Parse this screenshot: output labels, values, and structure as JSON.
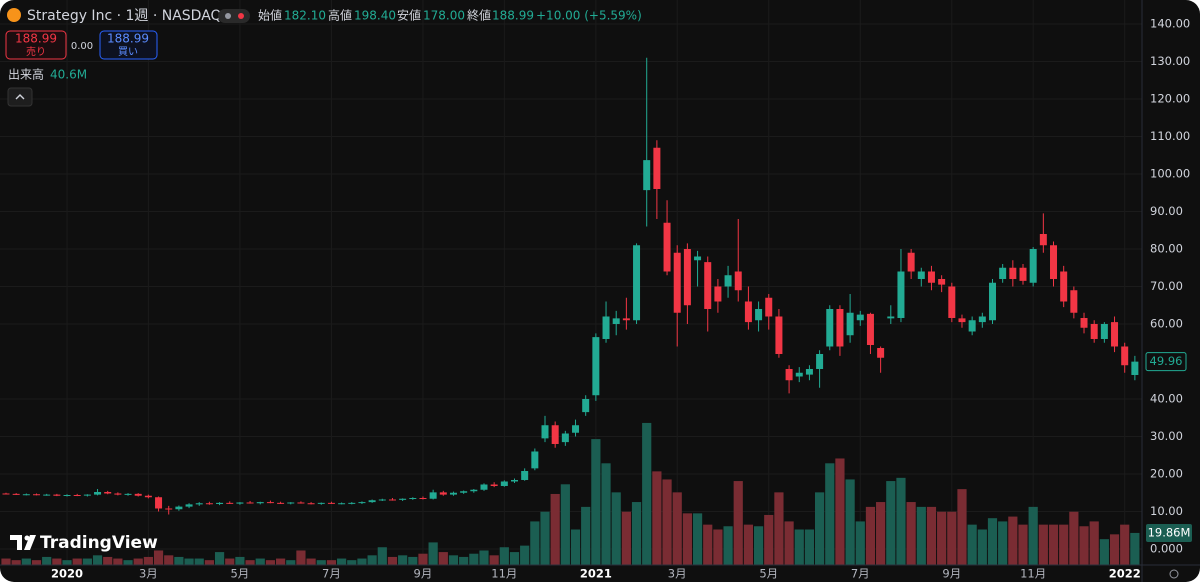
{
  "header": {
    "symbol": "Strategy Inc · 1週 · NASDAQ",
    "ohlc": [
      {
        "label": "始値",
        "value": "182.10"
      },
      {
        "label": "高値",
        "value": "198.40"
      },
      {
        "label": "安値",
        "value": "178.00"
      },
      {
        "label": "終値",
        "value": "188.99"
      }
    ],
    "change": "+10.00 (+5.59%)",
    "sell": {
      "price": "188.99",
      "label": "売り"
    },
    "spread": "0.00",
    "buy": {
      "price": "188.99",
      "label": "買い"
    },
    "volume_title": "出来高",
    "volume_value": "40.6M"
  },
  "watermark": "TradingView",
  "chart_data": {
    "type": "candlestick",
    "categories": [
      null,
      null,
      null,
      null,
      null,
      null,
      "2020",
      null,
      null,
      null,
      null,
      null,
      null,
      null,
      "3月",
      null,
      null,
      null,
      null,
      null,
      null,
      null,
      null,
      "5月",
      null,
      null,
      null,
      null,
      null,
      null,
      null,
      null,
      "7月",
      null,
      null,
      null,
      null,
      null,
      null,
      null,
      null,
      "9月",
      null,
      null,
      null,
      null,
      null,
      null,
      null,
      "11月",
      null,
      null,
      null,
      null,
      null,
      null,
      null,
      null,
      "2021",
      null,
      null,
      null,
      null,
      null,
      null,
      null,
      "3月",
      null,
      null,
      null,
      null,
      null,
      null,
      null,
      null,
      "5月",
      null,
      null,
      null,
      null,
      null,
      null,
      null,
      null,
      "7月",
      null,
      null,
      null,
      null,
      null,
      null,
      null,
      null,
      "9月",
      null,
      null,
      null,
      null,
      null,
      null,
      null,
      "11月",
      null,
      null,
      null,
      null,
      null,
      null,
      null,
      null,
      "2022",
      null
    ],
    "open": [
      14.8,
      14.7,
      14.5,
      14.6,
      14.4,
      14.5,
      14.2,
      14.4,
      14.3,
      14.5,
      15.2,
      14.8,
      14.5,
      14.7,
      14.2,
      13.8,
      10.8,
      10.6,
      11.3,
      11.9,
      12.2,
      12.0,
      12.3,
      12.1,
      12.4,
      12.2,
      12.5,
      12.3,
      12.2,
      12.4,
      12.2,
      12.1,
      12.3,
      12.1,
      12.2,
      12.3,
      12.5,
      13.0,
      13.2,
      13.1,
      13.4,
      13.6,
      13.4,
      15.1,
      14.5,
      15.0,
      15.4,
      15.8,
      17.2,
      16.8,
      18.0,
      18.4,
      21.5,
      29.5,
      33.0,
      28.5,
      31.0,
      36.5,
      41.0,
      56.0,
      60.0,
      61.5,
      61.0,
      95.7,
      107.0,
      87.0,
      79.0,
      80.0,
      77.0,
      76.5,
      70.0,
      70.0,
      74.0,
      66.0,
      61.0,
      67.0,
      62.0,
      48.0,
      46.0,
      46.5,
      48.0,
      54.0,
      64.0,
      57.0,
      61.0,
      62.7,
      53.6,
      61.5,
      61.6,
      79.0,
      72.0,
      74.0,
      72.0,
      70.0,
      61.5,
      58.0,
      60.5,
      61.0,
      72.0,
      75.0,
      75.0,
      71.0,
      84.0,
      81.0,
      74.0,
      69.0,
      61.6,
      60.0,
      56.0,
      60.5,
      54.0,
      46.4
    ],
    "high": [
      15.0,
      14.9,
      14.8,
      14.8,
      14.7,
      14.7,
      14.6,
      14.7,
      14.6,
      16.0,
      15.5,
      15.1,
      14.9,
      14.9,
      14.5,
      14.0,
      11.5,
      11.6,
      12.2,
      12.5,
      12.6,
      12.5,
      12.7,
      12.5,
      12.8,
      12.6,
      12.9,
      12.6,
      12.5,
      12.7,
      12.5,
      12.4,
      12.6,
      12.4,
      12.5,
      12.7,
      13.2,
      13.4,
      13.6,
      13.5,
      13.8,
      14.0,
      15.8,
      15.5,
      15.3,
      15.6,
      16.0,
      17.5,
      17.8,
      18.3,
      18.8,
      21.5,
      26.8,
      35.5,
      34.0,
      31.5,
      34.5,
      41.0,
      57.5,
      66.0,
      63.5,
      67.0,
      81.5,
      131.0,
      109.0,
      93.0,
      81.0,
      81.5,
      79.5,
      78.0,
      72.0,
      75.5,
      88.0,
      70.0,
      66.0,
      68.0,
      64.0,
      49.0,
      48.5,
      49.0,
      53.0,
      65.0,
      65.0,
      68.0,
      63.5,
      63.0,
      54.0,
      65.0,
      80.0,
      80.0,
      75.0,
      75.5,
      73.0,
      71.0,
      62.5,
      62.0,
      63.0,
      72.0,
      76.0,
      77.0,
      76.0,
      80.5,
      89.5,
      82.0,
      75.5,
      70.0,
      63.0,
      61.0,
      60.5,
      62.0,
      55.0,
      51.5
    ],
    "low": [
      14.6,
      14.4,
      14.3,
      14.3,
      14.2,
      14.1,
      14.0,
      14.1,
      14.0,
      14.3,
      14.6,
      14.3,
      14.2,
      14.0,
      13.5,
      10.0,
      9.2,
      10.2,
      10.9,
      11.5,
      11.8,
      11.7,
      12.0,
      11.8,
      12.1,
      11.9,
      12.2,
      12.0,
      11.9,
      12.1,
      11.9,
      11.8,
      12.0,
      11.9,
      11.9,
      12.0,
      12.3,
      12.8,
      12.9,
      12.8,
      13.1,
      13.2,
      13.2,
      14.2,
      14.2,
      14.7,
      15.0,
      15.5,
      16.5,
      16.6,
      17.6,
      18.2,
      21.0,
      28.5,
      27.0,
      27.5,
      30.0,
      35.5,
      39.5,
      55.0,
      57.0,
      58.5,
      60.0,
      86.0,
      88.0,
      73.0,
      54.0,
      60.0,
      70.0,
      58.0,
      63.0,
      67.0,
      66.0,
      58.5,
      58.0,
      58.5,
      51.0,
      41.5,
      44.5,
      45.0,
      43.0,
      53.0,
      51.5,
      55.0,
      59.5,
      52.0,
      47.0,
      60.0,
      60.5,
      72.0,
      70.0,
      69.0,
      68.5,
      60.5,
      59.0,
      57.0,
      59.0,
      60.0,
      71.0,
      70.0,
      70.5,
      70.0,
      79.0,
      70.0,
      64.5,
      61.5,
      57.5,
      55.0,
      55.0,
      52.5,
      47.0,
      45.0
    ],
    "close": [
      14.7,
      14.5,
      14.6,
      14.4,
      14.5,
      14.2,
      14.4,
      14.3,
      14.5,
      15.2,
      14.8,
      14.5,
      14.7,
      14.2,
      13.8,
      10.8,
      10.6,
      11.3,
      11.9,
      12.2,
      12.0,
      12.3,
      12.1,
      12.4,
      12.2,
      12.5,
      12.3,
      12.2,
      12.4,
      12.2,
      12.1,
      12.3,
      12.1,
      12.2,
      12.3,
      12.5,
      13.0,
      13.2,
      13.1,
      13.4,
      13.6,
      13.4,
      15.1,
      14.5,
      15.0,
      15.4,
      15.8,
      17.2,
      16.8,
      18.0,
      18.4,
      20.8,
      26.0,
      33.0,
      28.0,
      30.8,
      33.0,
      40.0,
      56.5,
      62.0,
      61.5,
      61.0,
      81.0,
      103.7,
      96.0,
      74.0,
      63.0,
      65.0,
      78.0,
      64.0,
      66.0,
      73.0,
      69.0,
      60.5,
      64.0,
      62.0,
      52.0,
      45.0,
      47.0,
      48.0,
      52.0,
      64.0,
      54.0,
      63.0,
      62.5,
      54.4,
      51.0,
      62.0,
      74.0,
      74.0,
      74.0,
      71.0,
      70.5,
      61.6,
      60.5,
      61.0,
      62.0,
      71.0,
      75.0,
      72.0,
      71.5,
      80.0,
      81.0,
      72.0,
      66.0,
      63.0,
      59.0,
      56.0,
      60.0,
      54.0,
      49.0,
      49.96
    ],
    "volume": [
      4,
      3,
      4,
      3,
      5,
      4,
      3,
      4,
      4,
      6,
      5,
      4,
      3,
      4,
      5,
      9,
      6,
      5,
      4,
      4,
      3,
      8,
      4,
      5,
      3,
      4,
      3,
      4,
      3,
      9,
      4,
      3,
      3,
      4,
      3,
      4,
      6,
      11,
      5,
      6,
      5,
      7,
      14,
      8,
      6,
      5,
      7,
      9,
      6,
      11,
      8,
      12,
      27,
      33,
      44,
      50,
      22,
      36,
      78,
      63,
      45,
      33,
      39,
      88,
      58,
      53,
      45,
      32,
      32,
      25,
      22,
      24,
      52,
      25,
      24,
      31,
      45,
      27,
      22,
      22,
      45,
      63,
      66,
      53,
      27,
      36,
      39,
      52,
      54,
      39,
      36,
      36,
      33,
      33,
      47,
      25,
      22,
      29,
      27,
      30,
      25,
      36,
      25,
      25,
      25,
      33,
      24,
      27,
      16,
      19,
      25,
      19.86
    ],
    "volume_label": "19.86M",
    "up_color": "#22ab94",
    "down_color": "#f23645",
    "volume_up_color": "#1b5e52",
    "volume_down_color": "#7a2c33",
    "ylim": [
      -4.27,
      146.4
    ],
    "yticks": [
      {
        "value": 0,
        "label": "0.000"
      },
      {
        "value": 10,
        "label": "10.00"
      },
      {
        "value": 20,
        "label": "20.00"
      },
      {
        "value": 30,
        "label": "30.00"
      },
      {
        "value": 40,
        "label": "40.00"
      },
      {
        "value": 60,
        "label": "60.00"
      },
      {
        "value": 70,
        "label": "70.00"
      },
      {
        "value": 80,
        "label": "80.00"
      },
      {
        "value": 90,
        "label": "90.00"
      },
      {
        "value": 100,
        "label": "100.00"
      },
      {
        "value": 110,
        "label": "110.00"
      },
      {
        "value": 120,
        "label": "120.00"
      },
      {
        "value": 130,
        "label": "130.00"
      },
      {
        "value": 140,
        "label": "140.00"
      }
    ],
    "volume_lim": [
      0,
      350
    ],
    "grid": true
  }
}
